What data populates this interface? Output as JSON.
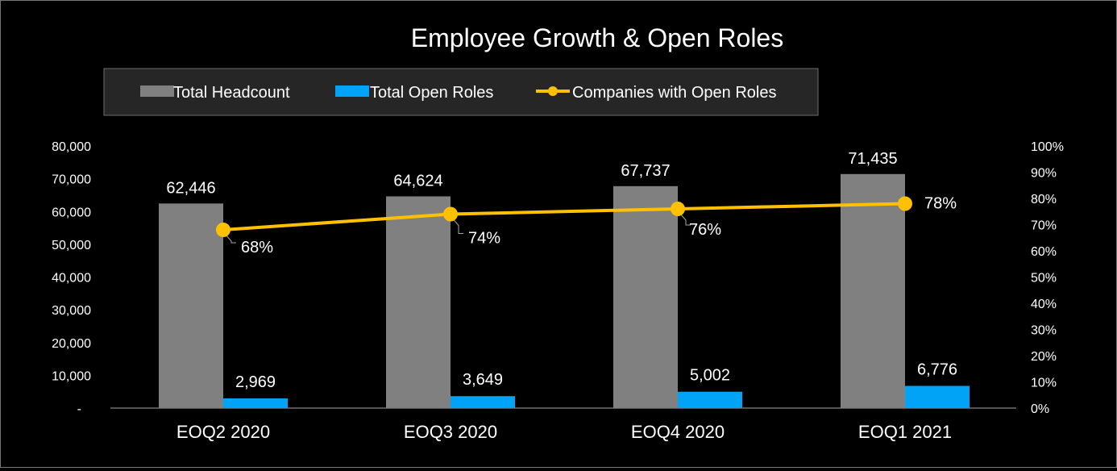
{
  "chart_data": {
    "type": "bar",
    "title": "Employee Growth & Open Roles",
    "categories": [
      "EOQ2 2020",
      "EOQ3 2020",
      "EOQ4 2020",
      "EOQ1 2021"
    ],
    "series": [
      {
        "name": "Total Headcount",
        "kind": "bar",
        "axis": "left",
        "color": "#808080",
        "values": [
          62446,
          64624,
          67737,
          71435
        ],
        "labels": [
          "62,446",
          "64,624",
          "67,737",
          "71,435"
        ]
      },
      {
        "name": "Total Open Roles",
        "kind": "bar",
        "axis": "left",
        "color": "#00A3F5",
        "values": [
          2969,
          3649,
          5002,
          6776
        ],
        "labels": [
          "2,969",
          "3,649",
          "5,002",
          "6,776"
        ]
      },
      {
        "name": "Companies with Open Roles",
        "kind": "line",
        "axis": "right",
        "color": "#FFC000",
        "values": [
          0.68,
          0.74,
          0.76,
          0.78
        ],
        "labels": [
          "68%",
          "74%",
          "76%",
          "78%"
        ]
      }
    ],
    "y_left": {
      "min": 0,
      "max": 80000,
      "ticks": [
        "-",
        "10,000",
        "20,000",
        "30,000",
        "40,000",
        "50,000",
        "60,000",
        "70,000",
        "80,000"
      ]
    },
    "y_right": {
      "min": 0,
      "max": 1,
      "ticks": [
        "0%",
        "10%",
        "20%",
        "30%",
        "40%",
        "50%",
        "60%",
        "70%",
        "80%",
        "90%",
        "100%"
      ]
    },
    "legend_position": "top",
    "grid": false
  }
}
